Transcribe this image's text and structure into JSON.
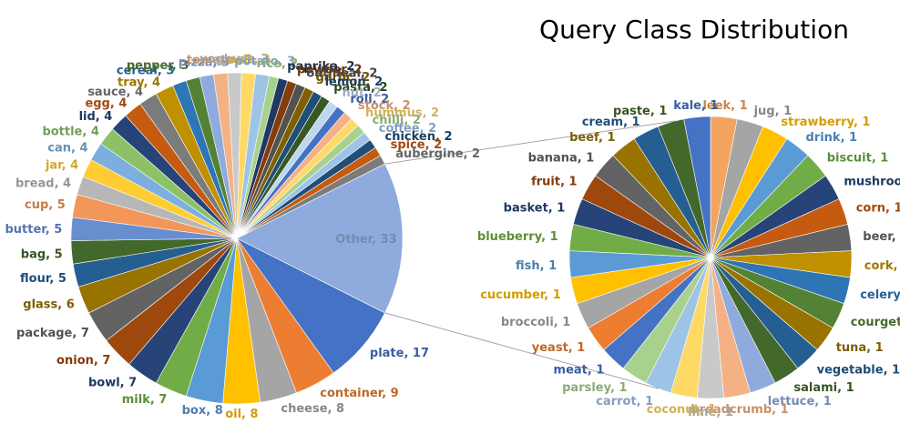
{
  "chart_data": {
    "type": "bar-of-pie",
    "title": "Query Class Distribution",
    "palette": [
      "#4472C4",
      "#ED7D31",
      "#A5A5A5",
      "#FFC000",
      "#5B9BD5",
      "#70AD47",
      "#264478",
      "#9E480E",
      "#636363",
      "#997300",
      "#255E91",
      "#43682B",
      "#698ED0",
      "#F1975A",
      "#B7B7B7",
      "#FFCD33",
      "#7CAFDD",
      "#8CC168"
    ],
    "main_pie": {
      "slices": [
        {
          "label": "Other",
          "value": 33,
          "color": "#8FAADC"
        },
        {
          "label": "plate",
          "value": 17,
          "color": "#4472C4"
        },
        {
          "label": "container",
          "value": 9,
          "color": "#ED7D31"
        },
        {
          "label": "cheese",
          "value": 8,
          "color": "#A5A5A5"
        },
        {
          "label": "oil",
          "value": 8,
          "color": "#FFC000"
        },
        {
          "label": "box",
          "value": 8,
          "color": "#5B9BD5"
        },
        {
          "label": "milk",
          "value": 7,
          "color": "#70AD47"
        },
        {
          "label": "bowl",
          "value": 7,
          "color": "#264478"
        },
        {
          "label": "onion",
          "value": 7,
          "color": "#9E480E"
        },
        {
          "label": "package",
          "value": 7,
          "color": "#636363"
        },
        {
          "label": "glass",
          "value": 6,
          "color": "#997300"
        },
        {
          "label": "flour",
          "value": 5,
          "color": "#255E91"
        },
        {
          "label": "bag",
          "value": 5,
          "color": "#43682B"
        },
        {
          "label": "butter",
          "value": 5,
          "color": "#698ED0"
        },
        {
          "label": "cup",
          "value": 5,
          "color": "#F1975A"
        },
        {
          "label": "bread",
          "value": 4,
          "color": "#B7B7B7"
        },
        {
          "label": "jar",
          "value": 4,
          "color": "#FFCD33"
        },
        {
          "label": "can",
          "value": 4,
          "color": "#7CAFDD"
        },
        {
          "label": "bottle",
          "value": 4,
          "color": "#8CC168"
        },
        {
          "label": "lid",
          "value": 4,
          "color": "#264478"
        },
        {
          "label": "egg",
          "value": 4,
          "color": "#C55A11"
        },
        {
          "label": "sauce",
          "value": 4,
          "color": "#7B7B7B"
        },
        {
          "label": "tray",
          "value": 4,
          "color": "#BF9000"
        },
        {
          "label": "cereal",
          "value": 3,
          "color": "#2E75B6"
        },
        {
          "label": "pepper",
          "value": 3,
          "color": "#548235"
        },
        {
          "label": "pizza",
          "value": 3,
          "color": "#8FAADC"
        },
        {
          "label": "tomato",
          "value": 3,
          "color": "#F4B183"
        },
        {
          "label": "yoghurt",
          "value": 3,
          "color": "#C9C9C9"
        },
        {
          "label": "salt",
          "value": 3,
          "color": "#FFD966"
        },
        {
          "label": "potato",
          "value": 3,
          "color": "#9DC3E6"
        },
        {
          "label": "rice",
          "value": 2,
          "color": "#A9D18E"
        },
        {
          "label": "paprika",
          "value": 2,
          "color": "#1F3864"
        },
        {
          "label": "powder",
          "value": 2,
          "color": "#843C0C"
        },
        {
          "label": "oatmeal",
          "value": 2,
          "color": "#525252"
        },
        {
          "label": "garlic",
          "value": 2,
          "color": "#7F6000"
        },
        {
          "label": "lemon",
          "value": 2,
          "color": "#1F4E79"
        },
        {
          "label": "pasta",
          "value": 2,
          "color": "#385723"
        },
        {
          "label": "nut",
          "value": 2,
          "color": "#BDD7EE"
        },
        {
          "label": "roll",
          "value": 2,
          "color": "#4472C4"
        },
        {
          "label": "stock",
          "value": 2,
          "color": "#F4B183"
        },
        {
          "label": "hummus",
          "value": 2,
          "color": "#FFD966"
        },
        {
          "label": "chilli",
          "value": 2,
          "color": "#A9D18E"
        },
        {
          "label": "coffee",
          "value": 2,
          "color": "#9DC3E6"
        },
        {
          "label": "chicken",
          "value": 2,
          "color": "#1F4E79"
        },
        {
          "label": "spice",
          "value": 2,
          "color": "#C55A11"
        },
        {
          "label": "aubergine",
          "value": 2,
          "color": "#7B7B7B"
        }
      ]
    },
    "secondary_pie": {
      "note_slice": "Other",
      "slices": [
        {
          "label": "leek",
          "value": 1,
          "color": "#F4A460"
        },
        {
          "label": "jug",
          "value": 1,
          "color": "#A5A5A5"
        },
        {
          "label": "strawberry",
          "value": 1,
          "color": "#FFC000"
        },
        {
          "label": "drink",
          "value": 1,
          "color": "#5B9BD5"
        },
        {
          "label": "biscuit",
          "value": 1,
          "color": "#70AD47"
        },
        {
          "label": "mushroom",
          "value": 1,
          "color": "#264478"
        },
        {
          "label": "corn",
          "value": 1,
          "color": "#C55A11"
        },
        {
          "label": "beer",
          "value": 1,
          "color": "#636363"
        },
        {
          "label": "cork",
          "value": 1,
          "color": "#BF9000"
        },
        {
          "label": "celery",
          "value": 1,
          "color": "#2E75B6"
        },
        {
          "label": "courgette",
          "value": 1,
          "color": "#548235"
        },
        {
          "label": "tuna",
          "value": 1,
          "color": "#997300"
        },
        {
          "label": "vegetable",
          "value": 1,
          "color": "#255E91"
        },
        {
          "label": "salami",
          "value": 1,
          "color": "#43682B"
        },
        {
          "label": "lettuce",
          "value": 1,
          "color": "#8FAADC"
        },
        {
          "label": "breadcrumb",
          "value": 1,
          "color": "#F4B183"
        },
        {
          "label": "lime",
          "value": 1,
          "color": "#C9C9C9"
        },
        {
          "label": "coconut",
          "value": 1,
          "color": "#FFD966"
        },
        {
          "label": "carrot",
          "value": 1,
          "color": "#9DC3E6"
        },
        {
          "label": "parsley",
          "value": 1,
          "color": "#A9D18E"
        },
        {
          "label": "meat",
          "value": 1,
          "color": "#4472C4"
        },
        {
          "label": "yeast",
          "value": 1,
          "color": "#ED7D31"
        },
        {
          "label": "broccoli",
          "value": 1,
          "color": "#A5A5A5"
        },
        {
          "label": "cucumber",
          "value": 1,
          "color": "#FFC000"
        },
        {
          "label": "fish",
          "value": 1,
          "color": "#5B9BD5"
        },
        {
          "label": "blueberry",
          "value": 1,
          "color": "#70AD47"
        },
        {
          "label": "basket",
          "value": 1,
          "color": "#264478"
        },
        {
          "label": "fruit",
          "value": 1,
          "color": "#9E480E"
        },
        {
          "label": "banana",
          "value": 1,
          "color": "#636363"
        },
        {
          "label": "beef",
          "value": 1,
          "color": "#997300"
        },
        {
          "label": "cream",
          "value": 1,
          "color": "#255E91"
        },
        {
          "label": "paste",
          "value": 1,
          "color": "#43682B"
        },
        {
          "label": "kale",
          "value": 1,
          "color": "#4472C4"
        }
      ]
    }
  }
}
